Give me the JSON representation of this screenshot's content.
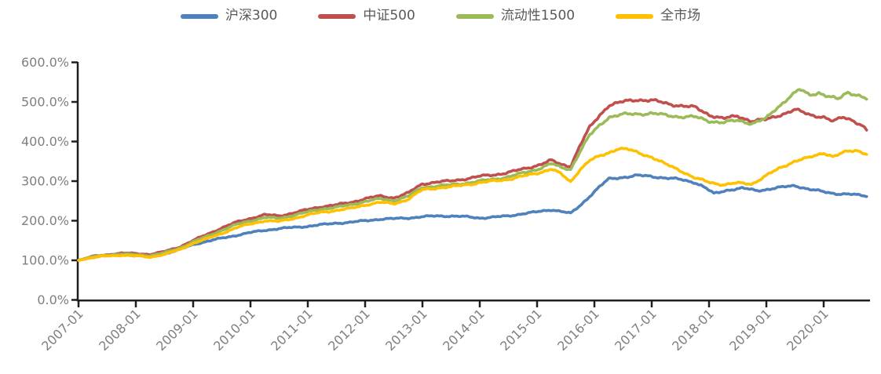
{
  "colors": {
    "background": "#ffffff",
    "axis_line": "#1f1f1f",
    "axis_label": "#7f7f7f",
    "legend_text": "#595959"
  },
  "chart_data": {
    "type": "line",
    "title": "",
    "grid": false,
    "legend_position": "top-center",
    "x_axis": {
      "tick_labels": [
        "2007-01",
        "2008-01",
        "2009-01",
        "2010-01",
        "2011-01",
        "2012-01",
        "2013-01",
        "2014-01",
        "2015-01",
        "2016-01",
        "2017-01",
        "2018-01",
        "2019-01",
        "2020-01"
      ],
      "label_rotation_deg": 45,
      "data_start": "2007-01",
      "data_end": "2020-10"
    },
    "y_axis": {
      "tick_labels": [
        "0.0%",
        "100.0%",
        "200.0%",
        "300.0%",
        "400.0%",
        "500.0%",
        "600.0%"
      ],
      "min": 0,
      "max": 600,
      "step": 100,
      "unit": "%"
    },
    "series": [
      {
        "name": "沪深300",
        "id": "hs300",
        "color": "#4F81BD",
        "points": [
          [
            "2007-01",
            100
          ],
          [
            "2007-04",
            108
          ],
          [
            "2007-07",
            113
          ],
          [
            "2007-10",
            115
          ],
          [
            "2008-01",
            112
          ],
          [
            "2008-04",
            109
          ],
          [
            "2008-07",
            116
          ],
          [
            "2008-10",
            126
          ],
          [
            "2009-01",
            140
          ],
          [
            "2009-04",
            148
          ],
          [
            "2009-07",
            156
          ],
          [
            "2009-10",
            163
          ],
          [
            "2010-01",
            170
          ],
          [
            "2010-04",
            176
          ],
          [
            "2010-07",
            180
          ],
          [
            "2010-10",
            183
          ],
          [
            "2011-01",
            186
          ],
          [
            "2011-04",
            190
          ],
          [
            "2011-07",
            194
          ],
          [
            "2011-10",
            196
          ],
          [
            "2012-01",
            200
          ],
          [
            "2012-04",
            204
          ],
          [
            "2012-07",
            205
          ],
          [
            "2012-10",
            207
          ],
          [
            "2013-01",
            210
          ],
          [
            "2013-04",
            212
          ],
          [
            "2013-07",
            212
          ],
          [
            "2013-10",
            210
          ],
          [
            "2014-01",
            207
          ],
          [
            "2014-04",
            209
          ],
          [
            "2014-07",
            212
          ],
          [
            "2014-10",
            218
          ],
          [
            "2015-01",
            222
          ],
          [
            "2015-04",
            228
          ],
          [
            "2015-06",
            224
          ],
          [
            "2015-08",
            218
          ],
          [
            "2015-10",
            238
          ],
          [
            "2015-12",
            262
          ],
          [
            "2016-02",
            285
          ],
          [
            "2016-04",
            305
          ],
          [
            "2016-07",
            310
          ],
          [
            "2016-10",
            314
          ],
          [
            "2017-01",
            312
          ],
          [
            "2017-04",
            308
          ],
          [
            "2017-07",
            304
          ],
          [
            "2017-10",
            297
          ],
          [
            "2017-12",
            285
          ],
          [
            "2018-02",
            268
          ],
          [
            "2018-05",
            278
          ],
          [
            "2018-08",
            282
          ],
          [
            "2018-11",
            276
          ],
          [
            "2019-01",
            279
          ],
          [
            "2019-04",
            284
          ],
          [
            "2019-07",
            289
          ],
          [
            "2019-10",
            279
          ],
          [
            "2020-01",
            273
          ],
          [
            "2020-04",
            268
          ],
          [
            "2020-07",
            266
          ],
          [
            "2020-10",
            263
          ]
        ]
      },
      {
        "name": "中证500",
        "id": "zz500",
        "color": "#C0504D",
        "points": [
          [
            "2007-01",
            100
          ],
          [
            "2007-04",
            110
          ],
          [
            "2007-07",
            114
          ],
          [
            "2007-10",
            118
          ],
          [
            "2008-01",
            117
          ],
          [
            "2008-04",
            115
          ],
          [
            "2008-07",
            122
          ],
          [
            "2008-10",
            133
          ],
          [
            "2009-01",
            150
          ],
          [
            "2009-04",
            166
          ],
          [
            "2009-07",
            182
          ],
          [
            "2009-10",
            196
          ],
          [
            "2010-01",
            206
          ],
          [
            "2010-04",
            215
          ],
          [
            "2010-07",
            212
          ],
          [
            "2010-10",
            220
          ],
          [
            "2011-01",
            228
          ],
          [
            "2011-04",
            236
          ],
          [
            "2011-07",
            240
          ],
          [
            "2011-10",
            246
          ],
          [
            "2012-01",
            256
          ],
          [
            "2012-04",
            262
          ],
          [
            "2012-07",
            258
          ],
          [
            "2012-10",
            270
          ],
          [
            "2013-01",
            293
          ],
          [
            "2013-04",
            298
          ],
          [
            "2013-07",
            300
          ],
          [
            "2013-10",
            306
          ],
          [
            "2014-01",
            312
          ],
          [
            "2014-04",
            316
          ],
          [
            "2014-07",
            322
          ],
          [
            "2014-10",
            330
          ],
          [
            "2015-01",
            340
          ],
          [
            "2015-04",
            352
          ],
          [
            "2015-06",
            342
          ],
          [
            "2015-08",
            338
          ],
          [
            "2015-10",
            390
          ],
          [
            "2015-12",
            435
          ],
          [
            "2016-02",
            465
          ],
          [
            "2016-04",
            492
          ],
          [
            "2016-07",
            500
          ],
          [
            "2016-10",
            506
          ],
          [
            "2017-01",
            504
          ],
          [
            "2017-04",
            496
          ],
          [
            "2017-07",
            491
          ],
          [
            "2017-10",
            486
          ],
          [
            "2018-01",
            468
          ],
          [
            "2018-04",
            458
          ],
          [
            "2018-07",
            464
          ],
          [
            "2018-10",
            452
          ],
          [
            "2019-01",
            455
          ],
          [
            "2019-04",
            468
          ],
          [
            "2019-07",
            480
          ],
          [
            "2019-10",
            468
          ],
          [
            "2020-01",
            462
          ],
          [
            "2020-03",
            450
          ],
          [
            "2020-05",
            462
          ],
          [
            "2020-07",
            455
          ],
          [
            "2020-09",
            440
          ],
          [
            "2020-10",
            428
          ]
        ]
      },
      {
        "name": "流动性1500",
        "id": "liquidity1500",
        "color": "#9BBB59",
        "points": [
          [
            "2007-01",
            100
          ],
          [
            "2007-04",
            109
          ],
          [
            "2007-07",
            113
          ],
          [
            "2007-10",
            116
          ],
          [
            "2008-01",
            114
          ],
          [
            "2008-04",
            112
          ],
          [
            "2008-07",
            119
          ],
          [
            "2008-10",
            130
          ],
          [
            "2009-01",
            147
          ],
          [
            "2009-04",
            161
          ],
          [
            "2009-07",
            176
          ],
          [
            "2009-10",
            190
          ],
          [
            "2010-01",
            200
          ],
          [
            "2010-04",
            208
          ],
          [
            "2010-07",
            206
          ],
          [
            "2010-10",
            214
          ],
          [
            "2011-01",
            222
          ],
          [
            "2011-04",
            230
          ],
          [
            "2011-07",
            234
          ],
          [
            "2011-10",
            240
          ],
          [
            "2012-01",
            249
          ],
          [
            "2012-04",
            255
          ],
          [
            "2012-07",
            251
          ],
          [
            "2012-10",
            262
          ],
          [
            "2013-01",
            284
          ],
          [
            "2013-04",
            288
          ],
          [
            "2013-07",
            290
          ],
          [
            "2013-10",
            295
          ],
          [
            "2014-01",
            300
          ],
          [
            "2014-04",
            305
          ],
          [
            "2014-07",
            311
          ],
          [
            "2014-10",
            320
          ],
          [
            "2015-01",
            330
          ],
          [
            "2015-04",
            344
          ],
          [
            "2015-06",
            334
          ],
          [
            "2015-08",
            330
          ],
          [
            "2015-10",
            375
          ],
          [
            "2015-12",
            415
          ],
          [
            "2016-02",
            440
          ],
          [
            "2016-04",
            462
          ],
          [
            "2016-07",
            468
          ],
          [
            "2016-10",
            470
          ],
          [
            "2017-01",
            471
          ],
          [
            "2017-04",
            466
          ],
          [
            "2017-07",
            463
          ],
          [
            "2017-10",
            462
          ],
          [
            "2018-01",
            452
          ],
          [
            "2018-04",
            448
          ],
          [
            "2018-07",
            453
          ],
          [
            "2018-10",
            446
          ],
          [
            "2019-01",
            458
          ],
          [
            "2019-03",
            482
          ],
          [
            "2019-06",
            515
          ],
          [
            "2019-08",
            531
          ],
          [
            "2019-10",
            517
          ],
          [
            "2019-12",
            524
          ],
          [
            "2020-02",
            514
          ],
          [
            "2020-04",
            506
          ],
          [
            "2020-06",
            524
          ],
          [
            "2020-08",
            519
          ],
          [
            "2020-10",
            508
          ]
        ]
      },
      {
        "name": "全市场",
        "id": "whole-market",
        "color": "#FFC000",
        "points": [
          [
            "2007-01",
            100
          ],
          [
            "2007-04",
            107
          ],
          [
            "2007-07",
            111
          ],
          [
            "2007-10",
            113
          ],
          [
            "2008-01",
            111
          ],
          [
            "2008-04",
            108
          ],
          [
            "2008-07",
            115
          ],
          [
            "2008-10",
            126
          ],
          [
            "2009-01",
            143
          ],
          [
            "2009-04",
            155
          ],
          [
            "2009-07",
            168
          ],
          [
            "2009-10",
            182
          ],
          [
            "2010-01",
            192
          ],
          [
            "2010-04",
            200
          ],
          [
            "2010-07",
            198
          ],
          [
            "2010-10",
            206
          ],
          [
            "2011-01",
            214
          ],
          [
            "2011-04",
            222
          ],
          [
            "2011-07",
            226
          ],
          [
            "2011-10",
            231
          ],
          [
            "2012-01",
            240
          ],
          [
            "2012-04",
            246
          ],
          [
            "2012-07",
            243
          ],
          [
            "2012-10",
            254
          ],
          [
            "2013-01",
            278
          ],
          [
            "2013-04",
            283
          ],
          [
            "2013-07",
            285
          ],
          [
            "2013-10",
            291
          ],
          [
            "2014-01",
            296
          ],
          [
            "2014-04",
            300
          ],
          [
            "2014-07",
            305
          ],
          [
            "2014-10",
            312
          ],
          [
            "2015-01",
            320
          ],
          [
            "2015-04",
            331
          ],
          [
            "2015-06",
            318
          ],
          [
            "2015-08",
            298
          ],
          [
            "2015-10",
            330
          ],
          [
            "2015-12",
            352
          ],
          [
            "2016-02",
            362
          ],
          [
            "2016-04",
            372
          ],
          [
            "2016-06",
            383
          ],
          [
            "2016-08",
            380
          ],
          [
            "2016-10",
            372
          ],
          [
            "2017-01",
            361
          ],
          [
            "2017-04",
            342
          ],
          [
            "2017-07",
            327
          ],
          [
            "2017-10",
            308
          ],
          [
            "2018-01",
            297
          ],
          [
            "2018-04",
            291
          ],
          [
            "2018-07",
            295
          ],
          [
            "2018-10",
            293
          ],
          [
            "2019-01",
            314
          ],
          [
            "2019-04",
            334
          ],
          [
            "2019-07",
            351
          ],
          [
            "2019-10",
            359
          ],
          [
            "2020-01",
            372
          ],
          [
            "2020-03",
            362
          ],
          [
            "2020-06",
            375
          ],
          [
            "2020-08",
            378
          ],
          [
            "2020-10",
            369
          ]
        ]
      }
    ]
  }
}
